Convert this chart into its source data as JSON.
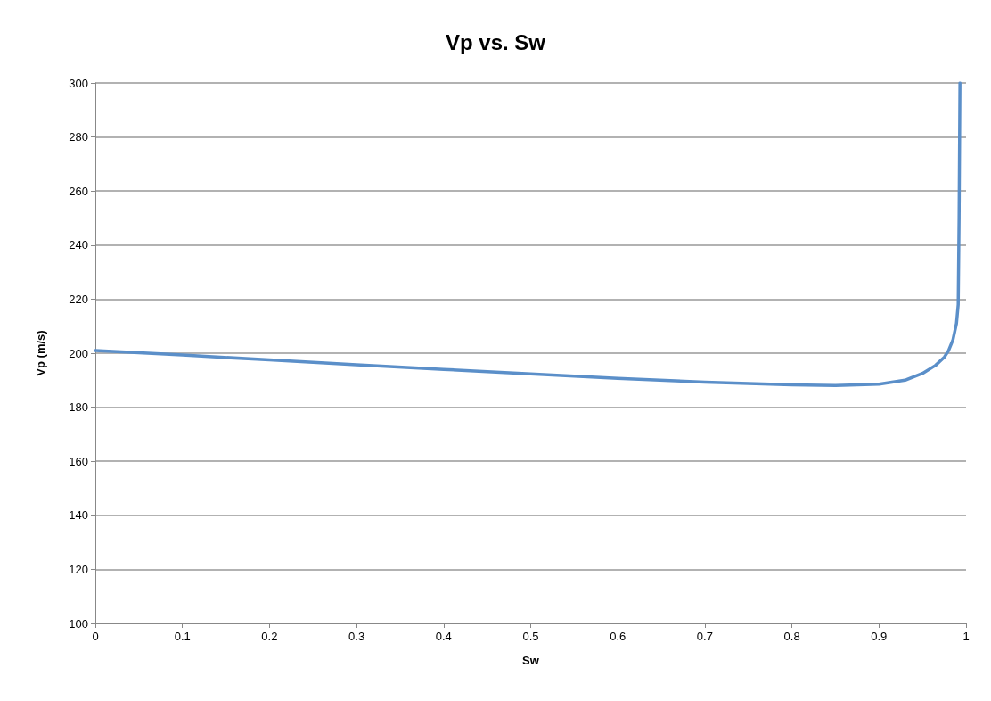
{
  "chart_data": {
    "type": "line",
    "title": "Vp vs. Sw",
    "xlabel": "Sw",
    "ylabel": "Vp (m/s)",
    "x": [
      0,
      0.05,
      0.1,
      0.2,
      0.3,
      0.4,
      0.5,
      0.6,
      0.7,
      0.8,
      0.85,
      0.9,
      0.93,
      0.95,
      0.965,
      0.975,
      0.98,
      0.985,
      0.989,
      0.991,
      0.992,
      0.993
    ],
    "series": [
      {
        "color": "#5b8fc9",
        "values": [
          201,
          200.2,
          199.3,
          197.5,
          195.7,
          194,
          192.3,
          190.7,
          189.3,
          188.3,
          188,
          188.5,
          190,
          192.5,
          195.5,
          198.5,
          201,
          205,
          211,
          218,
          250,
          300
        ]
      }
    ],
    "xlim": [
      0,
      1
    ],
    "xticks": [
      0,
      0.1,
      0.2,
      0.3,
      0.4,
      0.5,
      0.6,
      0.7,
      0.8,
      0.9,
      1
    ],
    "ylim": [
      100,
      300
    ],
    "yticks": [
      100,
      120,
      140,
      160,
      180,
      200,
      220,
      240,
      260,
      280,
      300
    ],
    "grid": "y",
    "marker": "none",
    "line_style": "solid"
  }
}
